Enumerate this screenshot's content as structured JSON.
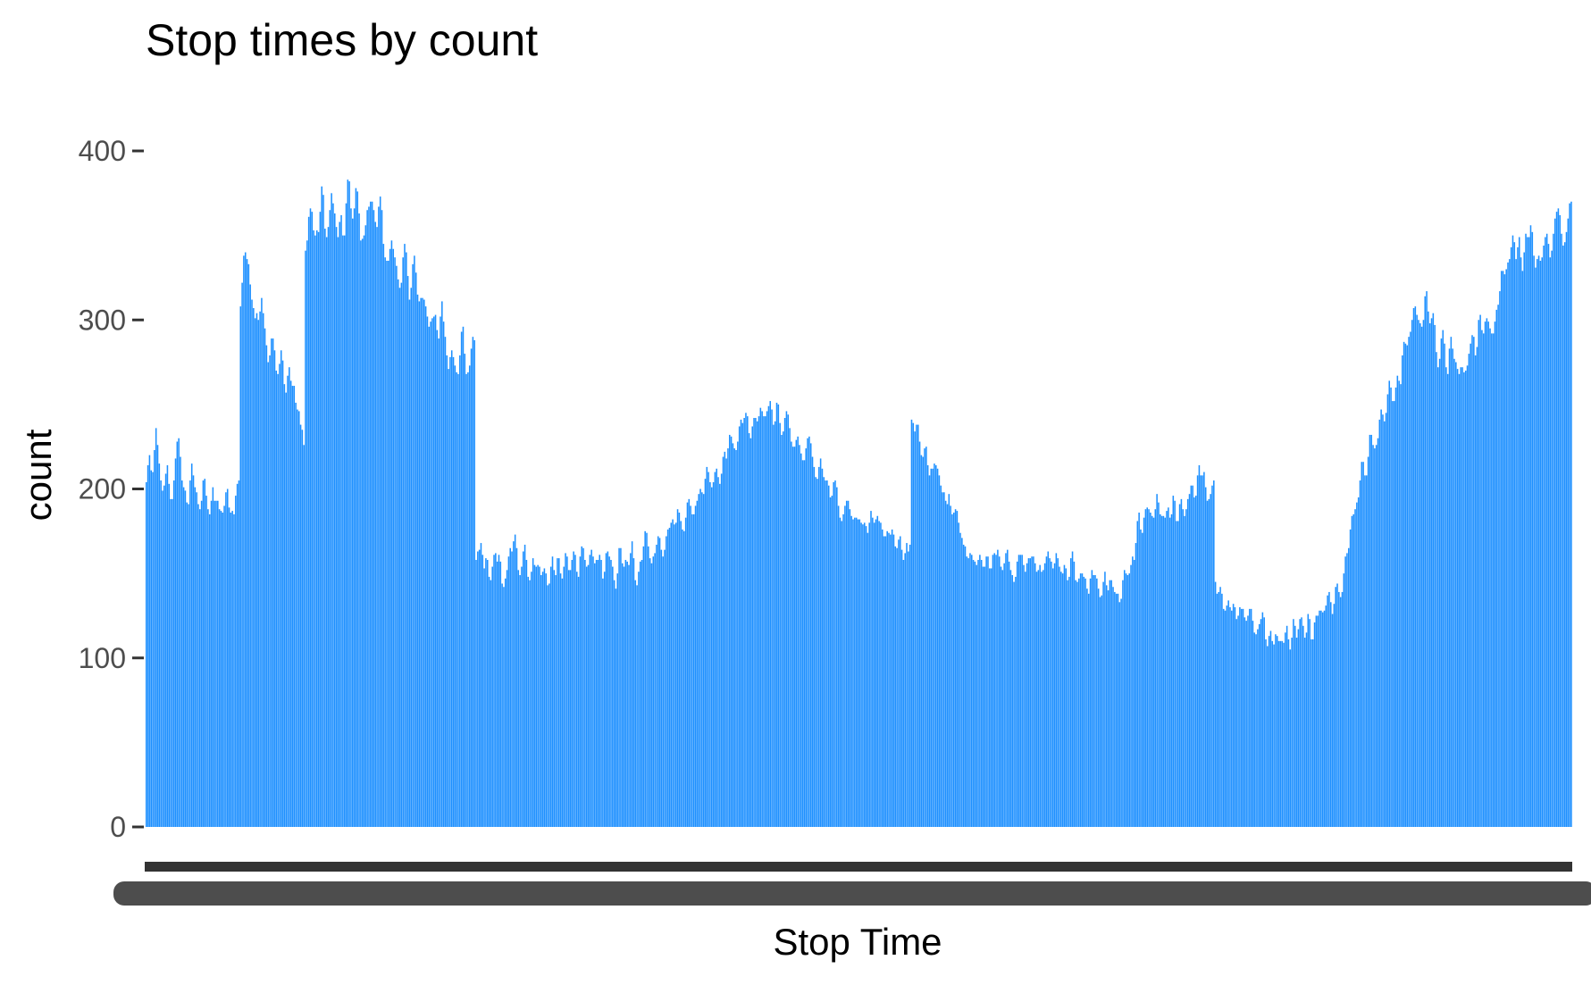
{
  "chart_data": {
    "type": "bar",
    "title": "Stop times by count",
    "xlabel": "Stop Time",
    "ylabel": "count",
    "ylim": [
      0,
      420
    ],
    "yticks": [
      0,
      100,
      200,
      300,
      400
    ],
    "ytick_labels": [
      "0",
      "100",
      "200",
      "300",
      "400"
    ],
    "grid": false,
    "legend": "none",
    "bar_color": "#1E90FF",
    "tick_color": "#333333",
    "x_tick_labels_overplotted": true,
    "n_bars": 840,
    "values": [
      204,
      214,
      220,
      211,
      210,
      223,
      236,
      226,
      215,
      205,
      199,
      202,
      209,
      214,
      203,
      194,
      194,
      205,
      218,
      228,
      230,
      219,
      205,
      201,
      199,
      192,
      191,
      205,
      215,
      208,
      201,
      198,
      191,
      188,
      193,
      205,
      206,
      196,
      188,
      185,
      193,
      201,
      193,
      193,
      193,
      188,
      187,
      186,
      190,
      198,
      200,
      189,
      186,
      187,
      185,
      196,
      203,
      205,
      308,
      322,
      338,
      340,
      336,
      333,
      321,
      312,
      307,
      301,
      304,
      300,
      305,
      313,
      304,
      295,
      285,
      275,
      279,
      289,
      289,
      282,
      270,
      268,
      274,
      282,
      276,
      262,
      257,
      267,
      272,
      264,
      261,
      261,
      251,
      247,
      246,
      238,
      235,
      226,
      341,
      347,
      361,
      366,
      364,
      353,
      350,
      353,
      352,
      364,
      379,
      374,
      354,
      349,
      355,
      365,
      375,
      369,
      363,
      355,
      349,
      358,
      362,
      350,
      350,
      369,
      383,
      382,
      366,
      360,
      366,
      378,
      376,
      363,
      347,
      348,
      350,
      356,
      365,
      367,
      370,
      370,
      365,
      358,
      355,
      367,
      373,
      365,
      345,
      337,
      335,
      335,
      342,
      347,
      342,
      337,
      332,
      324,
      319,
      322,
      337,
      345,
      340,
      326,
      312,
      319,
      333,
      338,
      328,
      315,
      311,
      313,
      313,
      312,
      308,
      302,
      296,
      299,
      301,
      302,
      303,
      294,
      289,
      302,
      311,
      299,
      290,
      279,
      271,
      278,
      282,
      278,
      273,
      269,
      268,
      279,
      293,
      296,
      280,
      268,
      269,
      273,
      283,
      290,
      288,
      158,
      163,
      164,
      168,
      161,
      153,
      159,
      158,
      148,
      146,
      154,
      161,
      162,
      157,
      161,
      157,
      144,
      142,
      147,
      152,
      160,
      165,
      163,
      169,
      173,
      165,
      152,
      149,
      154,
      163,
      167,
      158,
      148,
      146,
      151,
      159,
      155,
      154,
      155,
      154,
      149,
      151,
      153,
      150,
      143,
      144,
      154,
      160,
      152,
      149,
      159,
      159,
      150,
      147,
      154,
      162,
      160,
      152,
      152,
      158,
      163,
      161,
      151,
      148,
      160,
      166,
      165,
      158,
      154,
      155,
      161,
      164,
      160,
      156,
      158,
      158,
      161,
      158,
      147,
      151,
      162,
      163,
      160,
      158,
      154,
      146,
      141,
      150,
      165,
      165,
      156,
      154,
      158,
      157,
      155,
      162,
      169,
      159,
      146,
      143,
      151,
      157,
      158,
      166,
      175,
      174,
      166,
      159,
      156,
      160,
      162,
      167,
      172,
      171,
      164,
      160,
      164,
      172,
      176,
      177,
      180,
      182,
      179,
      180,
      188,
      186,
      181,
      176,
      175,
      183,
      192,
      194,
      190,
      185,
      185,
      190,
      193,
      197,
      200,
      198,
      197,
      206,
      213,
      210,
      204,
      201,
      204,
      210,
      212,
      207,
      203,
      209,
      219,
      222,
      218,
      224,
      232,
      231,
      227,
      224,
      223,
      228,
      237,
      241,
      239,
      242,
      245,
      243,
      233,
      230,
      237,
      242,
      242,
      240,
      243,
      248,
      246,
      243,
      243,
      246,
      249,
      252,
      247,
      238,
      240,
      251,
      250,
      239,
      232,
      234,
      242,
      246,
      244,
      236,
      228,
      225,
      225,
      229,
      231,
      226,
      221,
      217,
      217,
      224,
      230,
      231,
      227,
      219,
      213,
      207,
      206,
      213,
      218,
      212,
      207,
      205,
      205,
      202,
      195,
      196,
      204,
      205,
      201,
      190,
      183,
      181,
      185,
      190,
      193,
      193,
      188,
      184,
      182,
      183,
      183,
      182,
      182,
      180,
      179,
      180,
      178,
      174,
      180,
      187,
      183,
      180,
      182,
      184,
      181,
      180,
      176,
      172,
      172,
      175,
      174,
      173,
      176,
      173,
      166,
      165,
      170,
      172,
      164,
      158,
      162,
      168,
      163,
      167,
      241,
      239,
      234,
      238,
      238,
      228,
      220,
      219,
      224,
      225,
      214,
      208,
      212,
      212,
      215,
      214,
      212,
      208,
      202,
      198,
      198,
      193,
      191,
      197,
      190,
      185,
      186,
      188,
      187,
      180,
      174,
      171,
      167,
      166,
      160,
      159,
      162,
      161,
      158,
      157,
      155,
      158,
      161,
      158,
      154,
      154,
      160,
      160,
      153,
      153,
      161,
      162,
      161,
      164,
      160,
      154,
      152,
      156,
      162,
      164,
      157,
      152,
      149,
      145,
      148,
      157,
      161,
      161,
      161,
      155,
      151,
      156,
      159,
      159,
      160,
      160,
      156,
      151,
      152,
      155,
      151,
      152,
      156,
      160,
      163,
      159,
      157,
      153,
      156,
      162,
      159,
      154,
      151,
      150,
      155,
      153,
      146,
      148,
      159,
      163,
      157,
      146,
      145,
      147,
      150,
      150,
      148,
      147,
      141,
      138,
      147,
      152,
      149,
      149,
      147,
      141,
      136,
      137,
      145,
      151,
      143,
      140,
      146,
      146,
      142,
      139,
      138,
      138,
      133,
      135,
      146,
      152,
      150,
      149,
      150,
      155,
      160,
      158,
      168,
      181,
      186,
      176,
      174,
      183,
      188,
      189,
      188,
      186,
      184,
      183,
      188,
      197,
      192,
      185,
      184,
      184,
      183,
      187,
      189,
      183,
      185,
      196,
      193,
      181,
      181,
      191,
      194,
      188,
      184,
      188,
      194,
      197,
      202,
      202,
      195,
      196,
      208,
      214,
      208,
      208,
      210,
      201,
      193,
      194,
      197,
      202,
      205,
      145,
      138,
      139,
      142,
      138,
      129,
      128,
      131,
      134,
      130,
      128,
      132,
      130,
      123,
      125,
      130,
      129,
      129,
      124,
      122,
      125,
      129,
      129,
      122,
      115,
      114,
      117,
      120,
      123,
      127,
      124,
      111,
      107,
      113,
      116,
      110,
      108,
      114,
      113,
      110,
      110,
      110,
      109,
      115,
      119,
      111,
      105,
      112,
      123,
      119,
      112,
      117,
      123,
      124,
      119,
      112,
      115,
      126,
      123,
      111,
      111,
      121,
      125,
      125,
      128,
      128,
      127,
      128,
      131,
      137,
      139,
      133,
      126,
      132,
      142,
      144,
      139,
      136,
      139,
      150,
      160,
      162,
      165,
      176,
      184,
      185,
      188,
      192,
      195,
      205,
      216,
      216,
      208,
      208,
      219,
      232,
      232,
      226,
      224,
      226,
      230,
      241,
      247,
      244,
      240,
      245,
      256,
      264,
      260,
      252,
      252,
      260,
      267,
      264,
      262,
      279,
      287,
      286,
      285,
      290,
      293,
      300,
      307,
      308,
      303,
      300,
      298,
      296,
      300,
      314,
      317,
      305,
      298,
      301,
      304,
      297,
      281,
      272,
      277,
      289,
      294,
      286,
      272,
      268,
      283,
      290,
      283,
      277,
      275,
      271,
      268,
      272,
      272,
      269,
      270,
      273,
      280,
      286,
      291,
      290,
      279,
      284,
      300,
      303,
      294,
      292,
      299,
      301,
      299,
      295,
      292,
      292,
      299,
      306,
      309,
      317,
      329,
      329,
      327,
      330,
      334,
      336,
      343,
      350,
      346,
      336,
      343,
      349,
      337,
      329,
      340,
      351,
      349,
      349,
      356,
      352,
      338,
      331,
      336,
      338,
      335,
      337,
      344,
      349,
      351,
      345,
      337,
      341,
      351,
      360,
      364,
      366,
      362,
      351,
      344,
      346,
      352,
      360,
      369,
      370
    ]
  }
}
